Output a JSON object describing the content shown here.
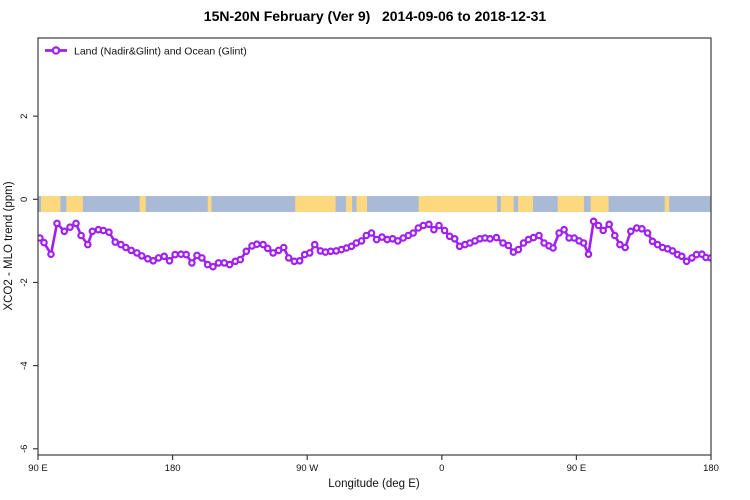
{
  "title": "15N-20N February (Ver 9)   2014-09-06 to 2018-12-31",
  "colors": {
    "series": "#A020F0",
    "marker_fill": "#ffffff",
    "ocean": "#a8bad6",
    "land": "#fed87f",
    "axis": "#3c3c3c",
    "text": "#111111"
  },
  "chart_data": {
    "type": "line",
    "title": "15N-20N February (Ver 9)   2014-09-06 to 2018-12-31",
    "xlabel": "Longitude (deg E)",
    "ylabel": "XCO2 - MLO trend (ppm)",
    "xlim": [
      90,
      540
    ],
    "ylim": [
      -6.15,
      3.88
    ],
    "grid": false,
    "legend_position": "top-left-inside",
    "x_ticks": [
      {
        "value": 90,
        "label": "90 E"
      },
      {
        "value": 180,
        "label": "180"
      },
      {
        "value": 270,
        "label": "90 W"
      },
      {
        "value": 360,
        "label": "0"
      },
      {
        "value": 450,
        "label": "90 E"
      },
      {
        "value": 540,
        "label": "180"
      }
    ],
    "y_ticks": [
      {
        "value": 2,
        "label": "2"
      },
      {
        "value": 0,
        "label": "0"
      },
      {
        "value": -2,
        "label": "-2"
      },
      {
        "value": -4,
        "label": "-4"
      },
      {
        "value": -6,
        "label": "-6"
      }
    ],
    "legend": [
      {
        "label": "Land (Nadir&Glint) and Ocean (Glint)",
        "marker": "open-circle-on-line",
        "color": "#A020F0"
      }
    ],
    "map_strip": {
      "description": "land/ocean band for 15N-20N drawn along the 0 ppm line",
      "ocean_color": "#a8bad6",
      "land_color": "#fed87f",
      "extent_lon": [
        90,
        540
      ],
      "land_segments_lon": [
        [
          92,
          105
        ],
        [
          109,
          120
        ],
        [
          158,
          162
        ],
        [
          203.5,
          206
        ],
        [
          262,
          289
        ],
        [
          296,
          300
        ],
        [
          303,
          310
        ],
        [
          344.5,
          397
        ],
        [
          399.5,
          408
        ],
        [
          411,
          421
        ],
        [
          437.5,
          455
        ],
        [
          459.5,
          471.5
        ],
        [
          509,
          512
        ]
      ]
    },
    "series": [
      {
        "name": "Land (Nadir&Glint) and Ocean (Glint)",
        "x": [
          91.3,
          94.0,
          98.7,
          102.7,
          107.6,
          111.4,
          115.4,
          118.8,
          123.3,
          126.4,
          130.4,
          133.7,
          137.5,
          141.6,
          145.4,
          148.7,
          152.3,
          156.1,
          159.4,
          163.4,
          167.0,
          170.6,
          174.4,
          177.9,
          181.7,
          185.6,
          189.1,
          192.9,
          196.3,
          199.6,
          203.4,
          207.0,
          210.7,
          214.6,
          218.1,
          221.9,
          225.3,
          229.3,
          233.1,
          236.4,
          240.5,
          243.6,
          247.2,
          250.9,
          254.3,
          257.6,
          261.4,
          265.0,
          268.3,
          271.7,
          275.0,
          278.8,
          282.2,
          285.7,
          289.4,
          292.9,
          296.3,
          299.6,
          302.8,
          306.3,
          309.5,
          313.0,
          316.4,
          320.0,
          323.5,
          327.1,
          330.6,
          334.2,
          337.6,
          340.9,
          344.3,
          347.6,
          351.4,
          354.7,
          358.1,
          361.9,
          365.2,
          368.6,
          371.9,
          375.5,
          378.8,
          382.2,
          385.5,
          388.9,
          392.2,
          396.5,
          400.9,
          404.5,
          407.9,
          411.2,
          414.6,
          417.9,
          421.3,
          425.0,
          428.4,
          431.7,
          434.4,
          438.4,
          441.8,
          445.1,
          448.5,
          451.8,
          454.8,
          458.1,
          461.5,
          464.8,
          467.9,
          471.9,
          475.7,
          479.1,
          482.6,
          486.4,
          490.3,
          493.8,
          497.6,
          500.9,
          504.3,
          507.6,
          511.0,
          514.3,
          517.7,
          520.5,
          523.7,
          527.2,
          530.3,
          533.9,
          536.6,
          540.0
        ],
        "y": [
          -0.93,
          -1.04,
          -1.32,
          -0.58,
          -0.77,
          -0.67,
          -0.58,
          -0.87,
          -1.09,
          -0.77,
          -0.73,
          -0.75,
          -0.79,
          -1.03,
          -1.09,
          -1.16,
          -1.23,
          -1.29,
          -1.36,
          -1.43,
          -1.48,
          -1.41,
          -1.37,
          -1.48,
          -1.33,
          -1.32,
          -1.33,
          -1.53,
          -1.35,
          -1.41,
          -1.57,
          -1.62,
          -1.53,
          -1.53,
          -1.57,
          -1.49,
          -1.45,
          -1.25,
          -1.12,
          -1.08,
          -1.09,
          -1.18,
          -1.29,
          -1.23,
          -1.16,
          -1.41,
          -1.49,
          -1.48,
          -1.33,
          -1.29,
          -1.09,
          -1.24,
          -1.27,
          -1.25,
          -1.24,
          -1.21,
          -1.17,
          -1.13,
          -1.05,
          -1.0,
          -0.87,
          -0.81,
          -0.97,
          -0.91,
          -0.97,
          -0.95,
          -1.0,
          -0.93,
          -0.87,
          -0.81,
          -0.69,
          -0.63,
          -0.6,
          -0.73,
          -0.63,
          -0.75,
          -0.89,
          -0.95,
          -1.13,
          -1.09,
          -1.05,
          -1.0,
          -0.95,
          -0.93,
          -0.95,
          -0.92,
          -1.05,
          -1.11,
          -1.27,
          -1.21,
          -1.05,
          -0.97,
          -0.92,
          -0.87,
          -1.05,
          -1.12,
          -1.17,
          -0.81,
          -0.73,
          -0.93,
          -0.93,
          -1.0,
          -1.05,
          -1.32,
          -0.53,
          -0.63,
          -0.75,
          -0.6,
          -0.87,
          -1.09,
          -1.16,
          -0.77,
          -0.69,
          -0.71,
          -0.81,
          -1.01,
          -1.09,
          -1.16,
          -1.19,
          -1.24,
          -1.33,
          -1.37,
          -1.49,
          -1.41,
          -1.33,
          -1.32,
          -1.4,
          -1.41
        ]
      }
    ]
  }
}
